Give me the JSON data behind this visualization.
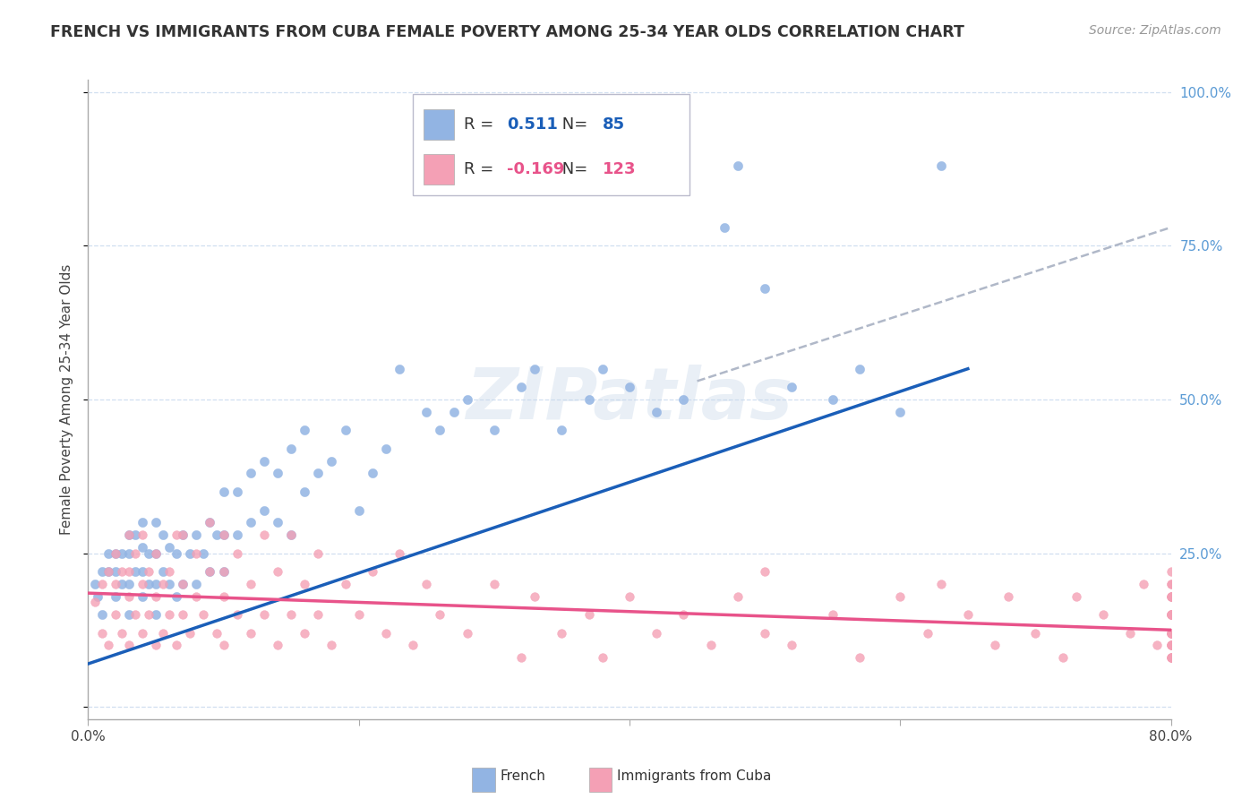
{
  "title": "FRENCH VS IMMIGRANTS FROM CUBA FEMALE POVERTY AMONG 25-34 YEAR OLDS CORRELATION CHART",
  "source": "Source: ZipAtlas.com",
  "ylabel": "Female Poverty Among 25-34 Year Olds",
  "xlim": [
    0.0,
    0.8
  ],
  "ylim": [
    -0.02,
    1.02
  ],
  "ytick_vals": [
    0.0,
    0.25,
    0.5,
    0.75,
    1.0
  ],
  "ytick_labels": [
    "",
    "25.0%",
    "50.0%",
    "75.0%",
    "100.0%"
  ],
  "xtick_vals": [
    0.0,
    0.2,
    0.4,
    0.6,
    0.8
  ],
  "xtick_labels": [
    "0.0%",
    "",
    "",
    "",
    "80.0%"
  ],
  "french_R": 0.511,
  "french_N": 85,
  "cuba_R": -0.169,
  "cuba_N": 123,
  "french_color": "#92b4e3",
  "cuba_color": "#f4a0b5",
  "french_line_color": "#1a5eb8",
  "cuba_line_color": "#e8538a",
  "dashed_line_color": "#b0b8c8",
  "watermark": "ZIPatlas",
  "background_color": "#ffffff",
  "french_line_x0": 0.0,
  "french_line_y0": 0.07,
  "french_line_x1": 0.65,
  "french_line_y1": 0.55,
  "cuba_line_x0": 0.0,
  "cuba_line_y0": 0.185,
  "cuba_line_x1": 0.8,
  "cuba_line_y1": 0.125,
  "dash_line_x0": 0.45,
  "dash_line_y0": 0.53,
  "dash_line_x1": 0.8,
  "dash_line_y1": 0.78,
  "french_scatter_x": [
    0.005,
    0.007,
    0.01,
    0.01,
    0.015,
    0.015,
    0.02,
    0.02,
    0.02,
    0.025,
    0.025,
    0.03,
    0.03,
    0.03,
    0.03,
    0.035,
    0.035,
    0.04,
    0.04,
    0.04,
    0.04,
    0.045,
    0.045,
    0.05,
    0.05,
    0.05,
    0.05,
    0.055,
    0.055,
    0.06,
    0.06,
    0.065,
    0.065,
    0.07,
    0.07,
    0.075,
    0.08,
    0.08,
    0.085,
    0.09,
    0.09,
    0.095,
    0.1,
    0.1,
    0.1,
    0.11,
    0.11,
    0.12,
    0.12,
    0.13,
    0.13,
    0.14,
    0.14,
    0.15,
    0.15,
    0.16,
    0.16,
    0.17,
    0.18,
    0.19,
    0.2,
    0.21,
    0.22,
    0.23,
    0.25,
    0.26,
    0.27,
    0.28,
    0.3,
    0.32,
    0.33,
    0.35,
    0.37,
    0.38,
    0.4,
    0.42,
    0.44,
    0.47,
    0.48,
    0.5,
    0.52,
    0.55,
    0.57,
    0.6,
    0.63
  ],
  "french_scatter_y": [
    0.2,
    0.18,
    0.22,
    0.15,
    0.22,
    0.25,
    0.18,
    0.22,
    0.25,
    0.2,
    0.25,
    0.15,
    0.2,
    0.25,
    0.28,
    0.22,
    0.28,
    0.18,
    0.22,
    0.26,
    0.3,
    0.2,
    0.25,
    0.15,
    0.2,
    0.25,
    0.3,
    0.22,
    0.28,
    0.2,
    0.26,
    0.18,
    0.25,
    0.2,
    0.28,
    0.25,
    0.2,
    0.28,
    0.25,
    0.22,
    0.3,
    0.28,
    0.22,
    0.28,
    0.35,
    0.28,
    0.35,
    0.3,
    0.38,
    0.32,
    0.4,
    0.3,
    0.38,
    0.28,
    0.42,
    0.35,
    0.45,
    0.38,
    0.4,
    0.45,
    0.32,
    0.38,
    0.42,
    0.55,
    0.48,
    0.45,
    0.48,
    0.5,
    0.45,
    0.52,
    0.55,
    0.45,
    0.5,
    0.55,
    0.52,
    0.48,
    0.5,
    0.78,
    0.88,
    0.68,
    0.52,
    0.5,
    0.55,
    0.48,
    0.88
  ],
  "cuba_scatter_x": [
    0.005,
    0.01,
    0.01,
    0.015,
    0.015,
    0.02,
    0.02,
    0.02,
    0.025,
    0.025,
    0.03,
    0.03,
    0.03,
    0.03,
    0.035,
    0.035,
    0.04,
    0.04,
    0.04,
    0.045,
    0.045,
    0.05,
    0.05,
    0.05,
    0.055,
    0.055,
    0.06,
    0.06,
    0.065,
    0.065,
    0.07,
    0.07,
    0.07,
    0.075,
    0.08,
    0.08,
    0.085,
    0.09,
    0.09,
    0.095,
    0.1,
    0.1,
    0.1,
    0.1,
    0.11,
    0.11,
    0.12,
    0.12,
    0.13,
    0.13,
    0.14,
    0.14,
    0.15,
    0.15,
    0.16,
    0.16,
    0.17,
    0.17,
    0.18,
    0.19,
    0.2,
    0.21,
    0.22,
    0.23,
    0.24,
    0.25,
    0.26,
    0.28,
    0.3,
    0.32,
    0.33,
    0.35,
    0.37,
    0.38,
    0.4,
    0.42,
    0.44,
    0.46,
    0.48,
    0.5,
    0.5,
    0.52,
    0.55,
    0.57,
    0.6,
    0.62,
    0.63,
    0.65,
    0.67,
    0.68,
    0.7,
    0.72,
    0.73,
    0.75,
    0.77,
    0.78,
    0.79,
    0.8,
    0.8,
    0.8,
    0.8,
    0.8,
    0.8,
    0.8,
    0.8,
    0.8,
    0.8,
    0.8,
    0.8,
    0.8,
    0.8,
    0.8,
    0.8,
    0.8,
    0.8,
    0.8,
    0.8,
    0.8,
    0.8,
    0.8,
    0.8,
    0.8,
    0.8
  ],
  "cuba_scatter_y": [
    0.17,
    0.12,
    0.2,
    0.1,
    0.22,
    0.15,
    0.2,
    0.25,
    0.12,
    0.22,
    0.1,
    0.18,
    0.22,
    0.28,
    0.15,
    0.25,
    0.12,
    0.2,
    0.28,
    0.15,
    0.22,
    0.1,
    0.18,
    0.25,
    0.12,
    0.2,
    0.15,
    0.22,
    0.1,
    0.28,
    0.15,
    0.2,
    0.28,
    0.12,
    0.18,
    0.25,
    0.15,
    0.22,
    0.3,
    0.12,
    0.1,
    0.18,
    0.22,
    0.28,
    0.15,
    0.25,
    0.12,
    0.2,
    0.15,
    0.28,
    0.1,
    0.22,
    0.15,
    0.28,
    0.12,
    0.2,
    0.15,
    0.25,
    0.1,
    0.2,
    0.15,
    0.22,
    0.12,
    0.25,
    0.1,
    0.2,
    0.15,
    0.12,
    0.2,
    0.08,
    0.18,
    0.12,
    0.15,
    0.08,
    0.18,
    0.12,
    0.15,
    0.1,
    0.18,
    0.12,
    0.22,
    0.1,
    0.15,
    0.08,
    0.18,
    0.12,
    0.2,
    0.15,
    0.1,
    0.18,
    0.12,
    0.08,
    0.18,
    0.15,
    0.12,
    0.2,
    0.1,
    0.08,
    0.15,
    0.12,
    0.18,
    0.1,
    0.22,
    0.12,
    0.15,
    0.08,
    0.18,
    0.1,
    0.15,
    0.12,
    0.2,
    0.08,
    0.15,
    0.12,
    0.18,
    0.1,
    0.15,
    0.08,
    0.2,
    0.12,
    0.15,
    0.1,
    0.18
  ]
}
